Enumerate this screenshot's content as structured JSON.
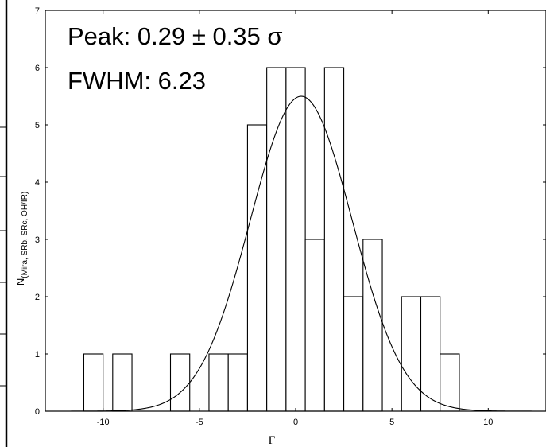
{
  "chart_data": {
    "type": "bar",
    "title": "",
    "xlabel": "Γ",
    "ylabel": "N",
    "ylabel_subscript": "(Mira, SRb, SRc, OH/IR)",
    "xlim": [
      -13,
      13
    ],
    "ylim": [
      0,
      7
    ],
    "x_ticks": [
      -10,
      -5,
      0,
      5,
      10
    ],
    "y_ticks": [
      0,
      1,
      2,
      3,
      4,
      5,
      6,
      7
    ],
    "bin_width": 1,
    "bins": [
      {
        "center": -10.5,
        "count": 1
      },
      {
        "center": -9,
        "count": 1
      },
      {
        "center": -6,
        "count": 1
      },
      {
        "center": -4,
        "count": 1
      },
      {
        "center": -3,
        "count": 1
      },
      {
        "center": -2,
        "count": 5
      },
      {
        "center": -1,
        "count": 6
      },
      {
        "center": 0,
        "count": 6
      },
      {
        "center": 1,
        "count": 3
      },
      {
        "center": 2,
        "count": 6
      },
      {
        "center": 3,
        "count": 2
      },
      {
        "center": 4,
        "count": 3
      },
      {
        "center": 6,
        "count": 2
      },
      {
        "center": 7,
        "count": 2
      },
      {
        "center": 8,
        "count": 1
      }
    ],
    "fit": {
      "type": "gaussian",
      "peak_x": 0.29,
      "amplitude": 5.5,
      "fwhm": 6.23
    },
    "annotations": [
      "Peak: 0.29 ± 0.35 σ",
      "FWHM: 6.23"
    ]
  }
}
